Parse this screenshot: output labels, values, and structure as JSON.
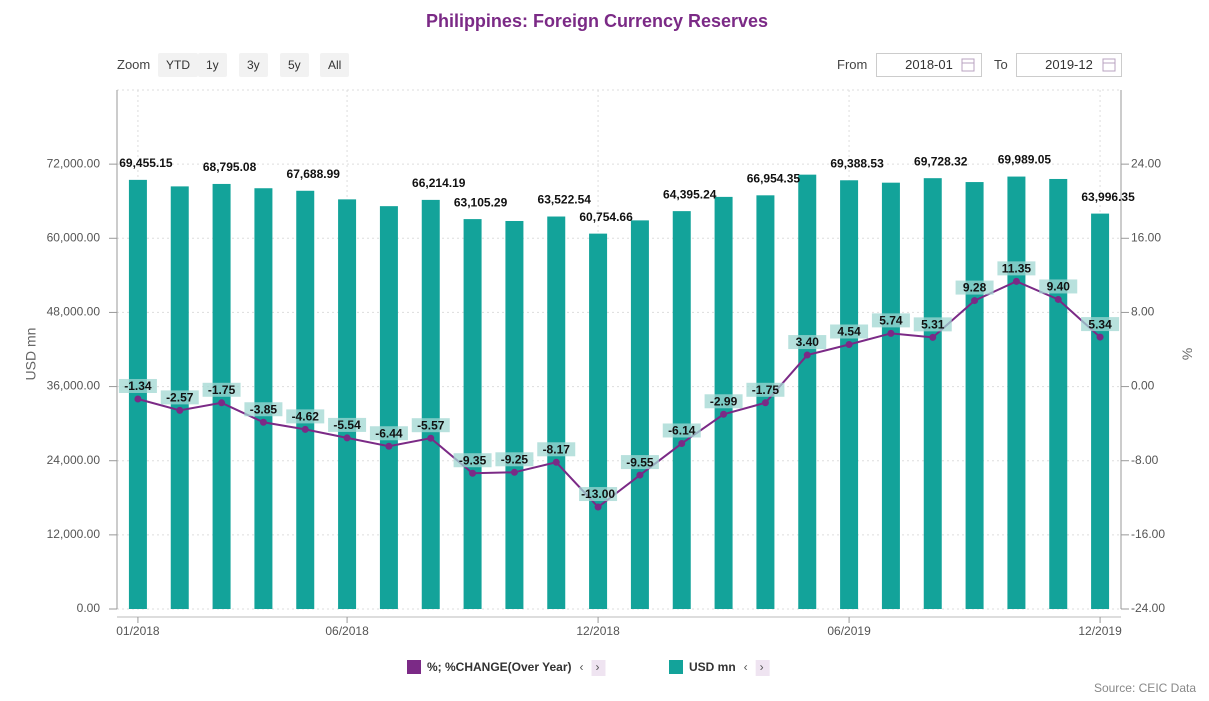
{
  "chart_data": {
    "type": "bar-line",
    "title": "Philippines: Foreign Currency Reserves",
    "categories": [
      "01/2018",
      null,
      null,
      null,
      null,
      "06/2018",
      null,
      null,
      null,
      null,
      null,
      "12/2018",
      null,
      null,
      null,
      null,
      null,
      "06/2019",
      null,
      null,
      null,
      null,
      null,
      "12/2019"
    ],
    "series": [
      {
        "name": "USD mn",
        "type": "bar",
        "color": "#13a39a",
        "values": [
          69455.15,
          68400,
          68795.08,
          68100,
          67688.99,
          66300,
          65200,
          66214.19,
          63105.29,
          62800,
          63522.54,
          60754.66,
          62900,
          64395.24,
          66700,
          66954.35,
          70300,
          69388.53,
          69000,
          69728.32,
          69100,
          69989.05,
          69600,
          63996.35
        ],
        "value_labels": [
          "69,455.15",
          null,
          "68,795.08",
          null,
          "67,688.99",
          null,
          null,
          "66,214.19",
          "63,105.29",
          null,
          "63,522.54",
          "60,754.66",
          null,
          "64,395.24",
          null,
          "66,954.35",
          null,
          "69,388.53",
          null,
          "69,728.32",
          null,
          "69,989.05",
          null,
          "63,996.35"
        ]
      },
      {
        "name": "%; %CHANGE(Over Year)",
        "type": "line",
        "axis": "y2",
        "color": "#7b2a86",
        "values": [
          -1.34,
          -2.57,
          -1.75,
          -3.85,
          -4.62,
          -5.54,
          -6.44,
          -5.57,
          -9.35,
          -9.25,
          -8.17,
          -13.0,
          -9.55,
          -6.14,
          -2.99,
          -1.75,
          3.4,
          4.54,
          5.74,
          5.31,
          9.28,
          11.35,
          9.4,
          5.34
        ],
        "value_labels": [
          "-1.34",
          "-2.57",
          "-1.75",
          "-3.85",
          "-4.62",
          "-5.54",
          "-6.44",
          "-5.57",
          "-9.35",
          "-9.25",
          "-8.17",
          "-13.00",
          "-9.55",
          "-6.14",
          "-2.99",
          "-1.75",
          "3.40",
          "4.54",
          "5.74",
          "5.31",
          "9.28",
          "11.35",
          "9.40",
          "5.34"
        ]
      }
    ],
    "y_label": "USD mn",
    "y2_label": "%",
    "ylim": [
      0,
      84000
    ],
    "yticks": [
      {
        "value": 0,
        "label": "0.00"
      },
      {
        "value": 12000,
        "label": "12,000.00"
      },
      {
        "value": 24000,
        "label": "24,000.00"
      },
      {
        "value": 36000,
        "label": "36,000.00"
      },
      {
        "value": 48000,
        "label": "48,000.00"
      },
      {
        "value": 60000,
        "label": "60,000.00"
      },
      {
        "value": 72000,
        "label": "72,000.00"
      }
    ],
    "y2lim": [
      -24,
      32
    ],
    "y2ticks": [
      {
        "value": -24,
        "label": "-24.00"
      },
      {
        "value": -16,
        "label": "-16.00"
      },
      {
        "value": -8,
        "label": "-8.00"
      },
      {
        "value": 0,
        "label": "0.00"
      },
      {
        "value": 8,
        "label": "8.00"
      },
      {
        "value": 16,
        "label": "16.00"
      },
      {
        "value": 24,
        "label": "24.00"
      }
    ],
    "grid": true
  },
  "controls": {
    "zoom_label": "Zoom",
    "zoom_options": [
      "YTD",
      "1y",
      "3y",
      "5y",
      "All"
    ],
    "from_label": "From",
    "from_value": "2018-01",
    "to_label": "To",
    "to_value": "2019-12"
  },
  "source": "Source: CEIC Data"
}
